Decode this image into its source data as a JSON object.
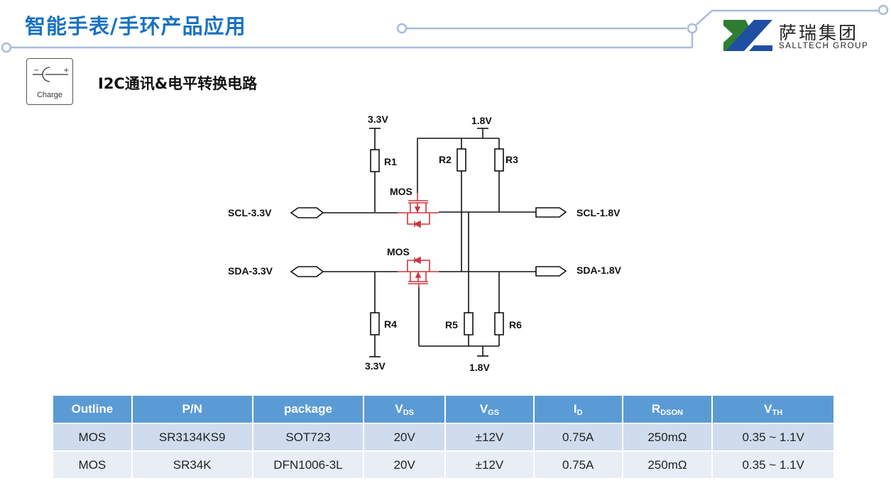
{
  "header": {
    "title": "智能手表/手环产品应用",
    "subtitle": "I2C通讯&电平转换电路"
  },
  "logo": {
    "cn": "萨瑞集团",
    "en": "SALLTECH GROUP",
    "colors": {
      "green": "#2e7d32",
      "blue": "#1f4fa3"
    }
  },
  "charge_icon": {
    "label": "Charge",
    "minus": "−",
    "plus": "+"
  },
  "circuit": {
    "v33_top": "3.3V",
    "v18_top": "1.8V",
    "v33_bottom": "3.3V",
    "v18_bottom": "1.8V",
    "r1": "R1",
    "r2": "R2",
    "r3": "R3",
    "r4": "R4",
    "r5": "R5",
    "r6": "R6",
    "mos_top": "MOS",
    "mos_bottom": "MOS",
    "scl_left": "SCL-3.3V",
    "sda_left": "SDA-3.3V",
    "scl_right": "SCL-1.8V",
    "sda_right": "SDA-1.8V",
    "mos_color": "#d0343a"
  },
  "table": {
    "headers": [
      {
        "main": "Outline",
        "sub": ""
      },
      {
        "main": "P/N",
        "sub": ""
      },
      {
        "main": "package",
        "sub": ""
      },
      {
        "main": "V",
        "sub": "DS"
      },
      {
        "main": "V",
        "sub": "GS"
      },
      {
        "main": "I",
        "sub": "D"
      },
      {
        "main": "R",
        "sub": "DSON"
      },
      {
        "main": "V",
        "sub": "TH"
      }
    ],
    "rows": [
      [
        "MOS",
        "SR3134KS9",
        "SOT723",
        "20V",
        "±12V",
        "0.75A",
        "250mΩ",
        "0.35 ~ 1.1V"
      ],
      [
        "MOS",
        "SR34K",
        "DFN1006-3L",
        "20V",
        "±12V",
        "0.75A",
        "250mΩ",
        "0.35 ~ 1.1V"
      ]
    ],
    "header_color": "#5b9bd5"
  }
}
